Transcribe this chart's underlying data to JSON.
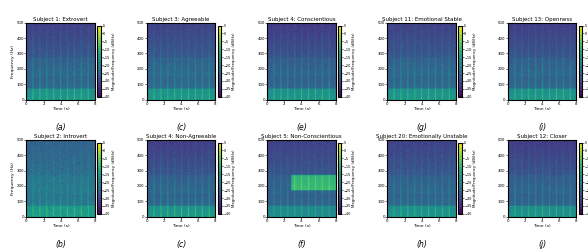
{
  "titles": [
    "Subject 1: Extrovert",
    "Subject 3: Agreeable",
    "Subject 4: Conscientious",
    "Subject 11: Emotional Stable",
    "Subject 13: Openness",
    "Subject 2: Introvert",
    "Subject 4: Non-Agreeable",
    "Subject 5: Non-Conscientious",
    "Subject 20: Emotionally Unstable",
    "Subject 12: Closer"
  ],
  "subplot_labels": [
    "(a)",
    "(c)",
    "(e)",
    "(g)",
    "(i)",
    "(b)",
    "(c)",
    "(f)",
    "(h)",
    "(j)"
  ],
  "figsize": [
    5.88,
    2.52
  ],
  "dpi": 100,
  "title_fontsize": 4.0,
  "label_fontsize": 3.2,
  "tick_fontsize": 2.8,
  "cbar_fontsize": 2.8,
  "cbar_tick_fontsize": 2.5,
  "sublabel_fontsize": 5.5
}
